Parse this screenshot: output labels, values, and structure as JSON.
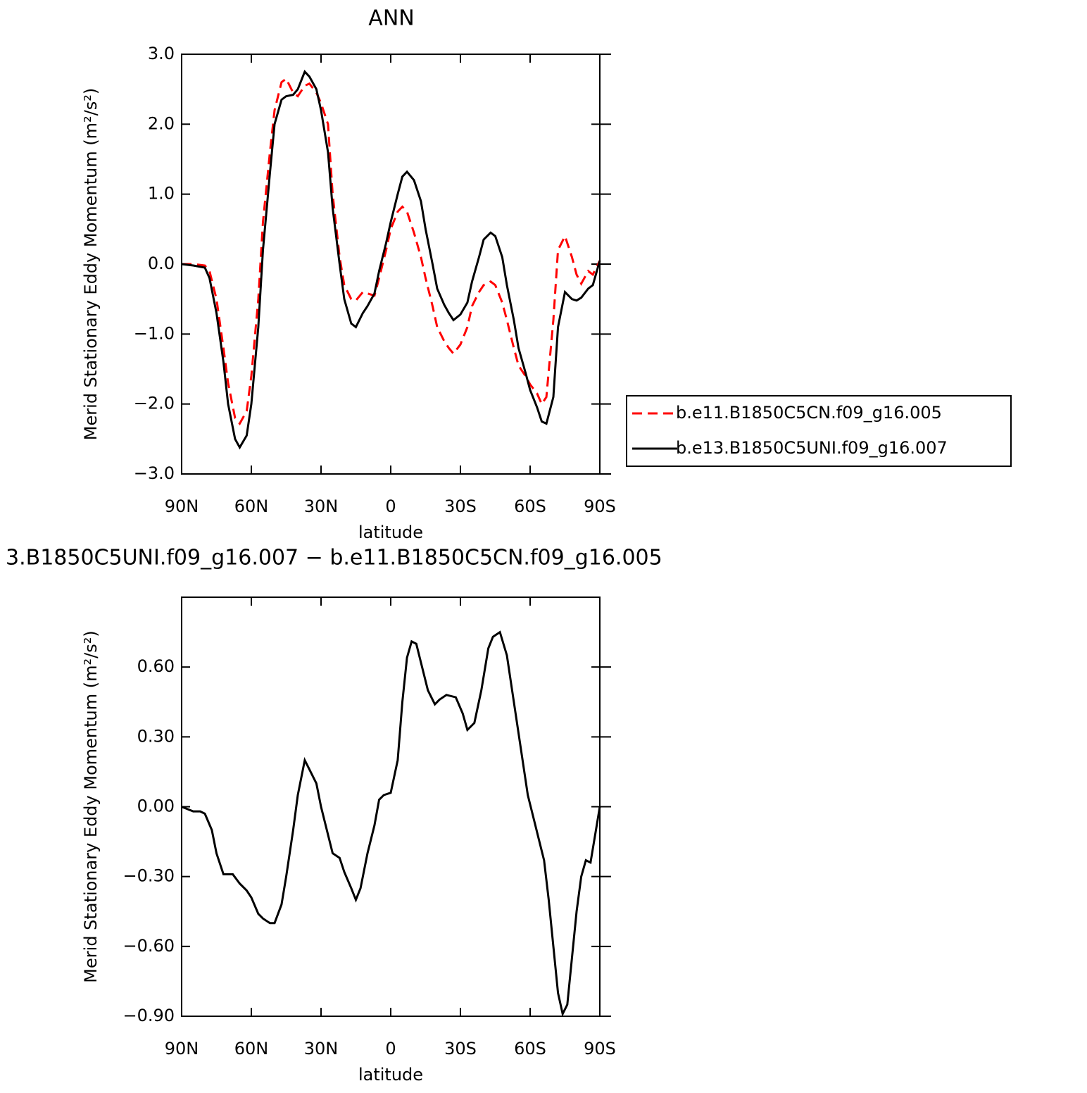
{
  "chart_data": [
    {
      "type": "line",
      "title": "ANN",
      "xlabel": "latitude",
      "ylabel": "Merid Stationary Eddy Momentum (m²/s²)",
      "x": [
        90,
        85,
        80,
        78,
        75,
        72,
        70,
        67,
        65,
        62,
        60,
        57,
        55,
        52,
        50,
        47,
        45,
        42,
        40,
        37,
        35,
        32,
        30,
        27,
        25,
        22,
        20,
        17,
        15,
        12,
        10,
        7,
        5,
        2,
        0,
        -3,
        -5,
        -7,
        -10,
        -13,
        -15,
        -18,
        -20,
        -23,
        -25,
        -27,
        -30,
        -33,
        -35,
        -38,
        -40,
        -43,
        -45,
        -48,
        -50,
        -53,
        -55,
        -58,
        -60,
        -63,
        -65,
        -67,
        -70,
        -72,
        -75,
        -78,
        -80,
        -82,
        -85,
        -87,
        -90
      ],
      "series": [
        {
          "name": "b.e11.B1850C5CN.f09_g16.005",
          "color": "#ff0000",
          "linestyle": "dashed",
          "values": [
            0,
            0,
            -0.02,
            -0.1,
            -0.5,
            -1.2,
            -1.7,
            -2.2,
            -2.28,
            -2.1,
            -1.6,
            -0.5,
            0.6,
            1.6,
            2.2,
            2.6,
            2.65,
            2.45,
            2.4,
            2.55,
            2.58,
            2.45,
            2.3,
            2.0,
            1.0,
            0.1,
            -0.3,
            -0.5,
            -0.52,
            -0.4,
            -0.42,
            -0.45,
            -0.2,
            0.2,
            0.5,
            0.75,
            0.82,
            0.75,
            0.45,
            0.1,
            -0.2,
            -0.6,
            -0.9,
            -1.1,
            -1.2,
            -1.28,
            -1.15,
            -0.9,
            -0.6,
            -0.4,
            -0.3,
            -0.25,
            -0.3,
            -0.55,
            -0.8,
            -1.2,
            -1.45,
            -1.6,
            -1.72,
            -1.85,
            -2.0,
            -1.9,
            -0.8,
            0.2,
            0.4,
            0.1,
            -0.15,
            -0.28,
            -0.1,
            -0.15,
            0.05
          ]
        },
        {
          "name": "b.e13.B1850C5UNI.f09_g16.007",
          "color": "#000000",
          "linestyle": "solid",
          "values": [
            0,
            -0.02,
            -0.05,
            -0.2,
            -0.7,
            -1.4,
            -2.0,
            -2.5,
            -2.62,
            -2.45,
            -2.0,
            -0.9,
            0.2,
            1.3,
            2.0,
            2.35,
            2.4,
            2.42,
            2.5,
            2.75,
            2.68,
            2.5,
            2.2,
            1.6,
            0.8,
            0,
            -0.5,
            -0.85,
            -0.9,
            -0.7,
            -0.6,
            -0.42,
            -0.1,
            0.3,
            0.6,
            1.0,
            1.25,
            1.32,
            1.2,
            0.9,
            0.5,
            0,
            -0.35,
            -0.58,
            -0.7,
            -0.8,
            -0.72,
            -0.55,
            -0.25,
            0.1,
            0.35,
            0.45,
            0.4,
            0.1,
            -0.3,
            -0.8,
            -1.2,
            -1.55,
            -1.8,
            -2.05,
            -2.25,
            -2.28,
            -1.9,
            -0.9,
            -0.4,
            -0.5,
            -0.52,
            -0.48,
            -0.35,
            -0.3,
            0.05
          ]
        }
      ],
      "xlim": [
        90,
        -90
      ],
      "xticks": [
        {
          "value": 90,
          "label": "90N"
        },
        {
          "value": 60,
          "label": "60N"
        },
        {
          "value": 30,
          "label": "30N"
        },
        0,
        {
          "value": -30,
          "label": "30S"
        },
        {
          "value": -60,
          "label": "60S"
        },
        {
          "value": -90,
          "label": "90S"
        }
      ],
      "ylim": [
        -3,
        3
      ],
      "yticks": [
        {
          "value": -3,
          "label": "−3.0"
        },
        {
          "value": -2,
          "label": "−2.0"
        },
        {
          "value": -1,
          "label": "−1.0"
        },
        {
          "value": 0,
          "label": "0.0"
        },
        {
          "value": 1,
          "label": "1.0"
        },
        {
          "value": 2,
          "label": "2.0"
        },
        {
          "value": 3,
          "label": "3.0"
        }
      ],
      "legend": "outside-right"
    },
    {
      "type": "line",
      "title": "3.B1850C5UNI.f09_g16.007 − b.e11.B1850C5CN.f09_g16.005",
      "xlabel": "latitude",
      "ylabel": "Merid Stationary Eddy Momentum (m²/s²)",
      "x": [
        90,
        85,
        82,
        80,
        77,
        75,
        72,
        70,
        68,
        65,
        62,
        60,
        57,
        55,
        52,
        50,
        47,
        45,
        42,
        40,
        37,
        35,
        32,
        30,
        27,
        25,
        22,
        20,
        17,
        15,
        13,
        10,
        7,
        5,
        3,
        0,
        -3,
        -5,
        -7,
        -9,
        -11,
        -13,
        -16,
        -19,
        -21,
        -24,
        -28,
        -31,
        -33,
        -36,
        -39,
        -42,
        -44,
        -47,
        -50,
        -53,
        -56,
        -59,
        -62,
        -64,
        -66,
        -68,
        -70,
        -72,
        -74,
        -76,
        -78,
        -80,
        -82,
        -84,
        -86,
        -88,
        -90
      ],
      "series": [
        {
          "color": "#000000",
          "linestyle": "solid",
          "values": [
            0,
            -0.02,
            -0.02,
            -0.03,
            -0.1,
            -0.2,
            -0.29,
            -0.29,
            -0.29,
            -0.33,
            -0.36,
            -0.39,
            -0.46,
            -0.48,
            -0.5,
            -0.5,
            -0.42,
            -0.3,
            -0.1,
            0.05,
            0.2,
            0.16,
            0.1,
            0,
            -0.12,
            -0.2,
            -0.22,
            -0.28,
            -0.35,
            -0.4,
            -0.35,
            -0.2,
            -0.08,
            0.03,
            0.05,
            0.06,
            0.2,
            0.45,
            0.64,
            0.71,
            0.7,
            0.62,
            0.5,
            0.44,
            0.46,
            0.48,
            0.47,
            0.4,
            0.33,
            0.36,
            0.5,
            0.68,
            0.73,
            0.75,
            0.65,
            0.45,
            0.25,
            0.05,
            -0.07,
            -0.15,
            -0.23,
            -0.4,
            -0.6,
            -0.8,
            -0.89,
            -0.85,
            -0.65,
            -0.45,
            -0.3,
            -0.23,
            -0.24,
            -0.12,
            0
          ]
        }
      ],
      "xlim": [
        90,
        -90
      ],
      "xticks": [
        {
          "value": 90,
          "label": "90N"
        },
        {
          "value": 60,
          "label": "60N"
        },
        {
          "value": 30,
          "label": "30N"
        },
        0,
        {
          "value": -30,
          "label": "30S"
        },
        {
          "value": -60,
          "label": "60S"
        },
        {
          "value": -90,
          "label": "90S"
        }
      ],
      "ylim": [
        -0.9,
        0.9
      ],
      "yticks": [
        {
          "value": -0.9,
          "label": "−0.90"
        },
        {
          "value": -0.6,
          "label": "−0.60"
        },
        {
          "value": -0.3,
          "label": "−0.30"
        },
        {
          "value": 0,
          "label": "0.00"
        },
        {
          "value": 0.3,
          "label": "0.30"
        },
        {
          "value": 0.6,
          "label": "0.60"
        }
      ]
    }
  ]
}
